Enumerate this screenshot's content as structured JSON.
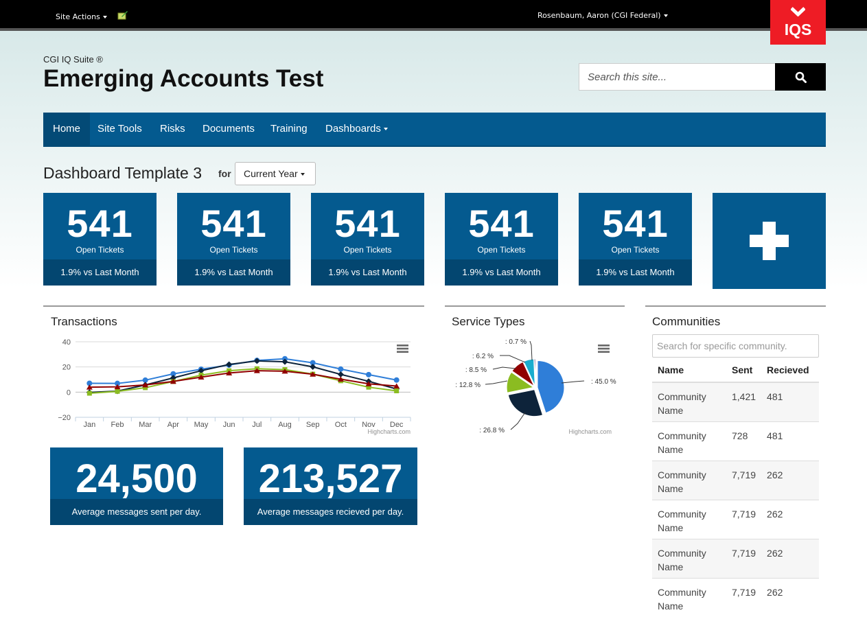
{
  "topbar": {
    "site_actions": "Site Actions",
    "user": "Rosenbaum, Aaron (CGI Federal)",
    "badge": "IQS"
  },
  "header": {
    "suite": "CGI IQ Suite ®",
    "title": "Emerging Accounts Test",
    "search_placeholder": "Search this site..."
  },
  "nav": {
    "items": [
      {
        "label": "Home",
        "active": true
      },
      {
        "label": "Site Tools"
      },
      {
        "label": "Risks"
      },
      {
        "label": "Documents"
      },
      {
        "label": "Training"
      },
      {
        "label": "Dashboards"
      }
    ]
  },
  "dashboard": {
    "title": "Dashboard Template 3",
    "for_label": "for",
    "period": "Current Year"
  },
  "tiles": [
    {
      "value": "541",
      "label": "Open Tickets",
      "foot": "1.9% vs Last Month"
    },
    {
      "value": "541",
      "label": "Open Tickets",
      "foot": "1.9% vs Last Month"
    },
    {
      "value": "541",
      "label": "Open Tickets",
      "foot": "1.9% vs Last Month"
    },
    {
      "value": "541",
      "label": "Open Tickets",
      "foot": "1.9% vs Last Month"
    },
    {
      "value": "541",
      "label": "Open Tickets",
      "foot": "1.9% vs Last Month"
    }
  ],
  "transactions": {
    "title": "Transactions",
    "credit": "Highcharts.com"
  },
  "service_types": {
    "title": "Service Types",
    "credit": "Highcharts.com"
  },
  "stats": [
    {
      "value": "24,500",
      "label": "Average messages sent per day."
    },
    {
      "value": "213,527",
      "label": "Average messages recieved per day."
    }
  ],
  "communities": {
    "title": "Communities",
    "search_placeholder": "Search for specific community.",
    "headers": [
      "Name",
      "Sent",
      "Recieved"
    ],
    "rows": [
      [
        "Community Name",
        "1,421",
        "481"
      ],
      [
        "Community Name",
        "728",
        "481"
      ],
      [
        "Community Name",
        "7,719",
        "262"
      ],
      [
        "Community Name",
        "7,719",
        "262"
      ],
      [
        "Community Name",
        "7,719",
        "262"
      ],
      [
        "Community Name",
        "7,719",
        "262"
      ]
    ]
  },
  "chart_data": [
    {
      "type": "line",
      "title": "Transactions",
      "categories": [
        "Jan",
        "Feb",
        "Mar",
        "Apr",
        "May",
        "Jun",
        "Jul",
        "Aug",
        "Sep",
        "Oct",
        "Nov",
        "Dec"
      ],
      "ylim": [
        -20,
        40
      ],
      "yticks": [
        -20,
        0,
        20,
        40
      ],
      "grid": true,
      "series": [
        {
          "color": "#2f7ed8",
          "marker": "circle",
          "values": [
            7.0,
            6.9,
            9.5,
            14.5,
            18.2,
            21.5,
            25.2,
            26.5,
            23.3,
            18.3,
            13.9,
            9.6
          ]
        },
        {
          "color": "#0d233a",
          "marker": "diamond",
          "values": [
            -0.2,
            0.8,
            5.7,
            11.3,
            17.0,
            22.0,
            24.8,
            24.1,
            20.1,
            14.1,
            8.6,
            2.5
          ]
        },
        {
          "color": "#8bbc21",
          "marker": "square",
          "values": [
            -0.9,
            0.6,
            3.5,
            8.4,
            13.5,
            17.0,
            18.6,
            17.9,
            14.3,
            9.0,
            3.9,
            1.0
          ]
        },
        {
          "color": "#910000",
          "marker": "triangle",
          "values": [
            3.9,
            4.2,
            5.7,
            8.5,
            11.9,
            15.2,
            17.0,
            16.6,
            14.2,
            10.3,
            6.6,
            4.8
          ]
        }
      ]
    },
    {
      "type": "pie",
      "title": "Service Types",
      "slices": [
        {
          "label": "45.0 %",
          "value": 45.0,
          "color": "#2f7ed8"
        },
        {
          "label": "26.8 %",
          "value": 26.8,
          "color": "#0d233a"
        },
        {
          "label": "12.8 %",
          "value": 12.8,
          "color": "#8bbc21"
        },
        {
          "label": "8.5 %",
          "value": 8.5,
          "color": "#910000"
        },
        {
          "label": "6.2 %",
          "value": 6.2,
          "color": "#1aadce"
        },
        {
          "label": "0.7 %",
          "value": 0.7,
          "color": "#492970"
        }
      ]
    }
  ]
}
